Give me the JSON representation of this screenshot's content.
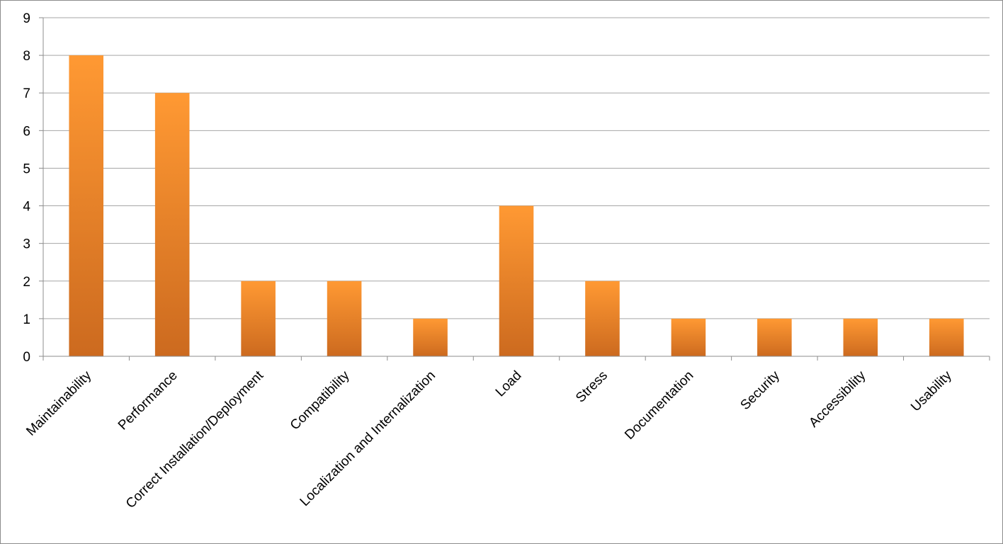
{
  "chart_data": {
    "type": "bar",
    "categories": [
      "Maintainability",
      "Performance",
      "Correct Installation/Deployment",
      "Compatibility",
      "Localization and Internalization",
      "Load",
      "Stress",
      "Documentation",
      "Security",
      "Accessibility",
      "Usability"
    ],
    "values": [
      8,
      7,
      2,
      2,
      1,
      4,
      2,
      1,
      1,
      1,
      1
    ],
    "ylim": [
      0,
      9
    ],
    "yticks": [
      "0",
      "1",
      "2",
      "3",
      "4",
      "5",
      "6",
      "7",
      "8",
      "9"
    ],
    "grid": true,
    "legend": "none",
    "title": "",
    "xlabel": "",
    "ylabel": "",
    "colors": {
      "bar_top": "#ff9933",
      "bar_bottom": "#cc6a1f",
      "grid": "#a6a6a6"
    }
  }
}
